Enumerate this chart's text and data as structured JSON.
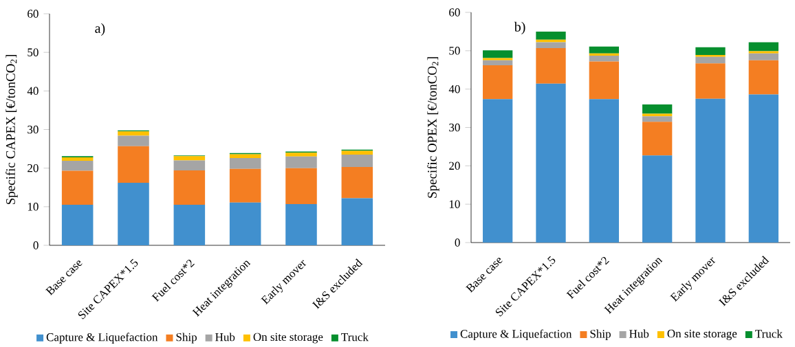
{
  "chart_data": [
    {
      "type": "bar",
      "stacked": true,
      "ylabel": "Specific CAPEX [€/tonCO$_{2}$]",
      "annotations": [
        "a)"
      ],
      "categories": [
        "Base case",
        "Site CAPEX*1.5",
        "Fuel cost*2",
        "Heat integration",
        "Early mover",
        "I&S excluded"
      ],
      "ylim": [
        0,
        60
      ],
      "yticks": [
        0,
        10,
        20,
        30,
        40,
        50,
        60
      ],
      "legend": "bottom",
      "series": [
        {
          "name": "Capture & Liquefaction",
          "color": "#4190ce",
          "values": [
            10.5,
            16.2,
            10.5,
            11.1,
            10.7,
            12.2
          ]
        },
        {
          "name": "Ship",
          "color": "#f47e22",
          "values": [
            8.8,
            9.5,
            8.9,
            8.7,
            9.3,
            8.1
          ]
        },
        {
          "name": "Hub",
          "color": "#a5a5a5",
          "values": [
            2.6,
            2.7,
            2.6,
            2.8,
            3.0,
            3.2
          ]
        },
        {
          "name": "On site storage",
          "color": "#ffc000",
          "values": [
            0.9,
            1.1,
            1.1,
            1.0,
            1.0,
            1.0
          ]
        },
        {
          "name": "Truck",
          "color": "#068f2e",
          "values": [
            0.3,
            0.3,
            0.2,
            0.3,
            0.3,
            0.3
          ]
        }
      ]
    },
    {
      "type": "bar",
      "stacked": true,
      "ylabel": "Specific OPEX [€/tonCO$_{2}$]",
      "annotations": [
        "b)"
      ],
      "categories": [
        "Base case",
        "Site CAPEX*1.5",
        "Fuel cost*2",
        "Heat integration",
        "Early mover",
        "I&S excluded"
      ],
      "ylim": [
        0,
        60
      ],
      "yticks": [
        0,
        10,
        20,
        30,
        40,
        50,
        60
      ],
      "legend": "bottom",
      "series": [
        {
          "name": "Capture & Liquefaction",
          "color": "#4190ce",
          "values": [
            37.4,
            41.4,
            37.4,
            22.7,
            37.5,
            38.6
          ]
        },
        {
          "name": "Ship",
          "color": "#f47e22",
          "values": [
            8.8,
            9.3,
            9.8,
            8.8,
            9.2,
            8.9
          ]
        },
        {
          "name": "Hub",
          "color": "#a5a5a5",
          "values": [
            1.3,
            1.5,
            1.5,
            1.4,
            1.7,
            1.8
          ]
        },
        {
          "name": "On site storage",
          "color": "#ffc000",
          "values": [
            0.6,
            0.7,
            0.6,
            0.7,
            0.5,
            0.6
          ]
        },
        {
          "name": "Truck",
          "color": "#068f2e",
          "values": [
            2.0,
            2.1,
            1.8,
            2.4,
            2.0,
            2.3
          ]
        }
      ]
    }
  ]
}
